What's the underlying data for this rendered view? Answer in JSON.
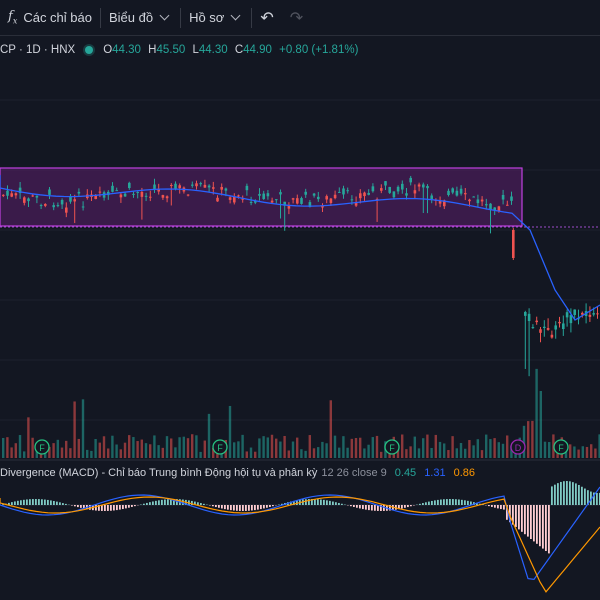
{
  "toolbar": {
    "indicators_label": "Các chỉ báo",
    "chart_label": "Biểu đồ",
    "profile_label": "Hồ sơ",
    "fx_glyph": "f",
    "fx_sub": "x",
    "undo_glyph": "↶",
    "redo_glyph": "↷"
  },
  "legend": {
    "symbol": "CP · 1D · HNX",
    "o_label": "O",
    "o_value": "44.30",
    "h_label": "H",
    "h_value": "45.50",
    "l_label": "L",
    "l_value": "44.30",
    "c_label": "C",
    "c_value": "44.90",
    "change": "+0.80 (+1.81%)"
  },
  "macd_legend": {
    "name": "Divergence (MACD) - Chỉ báo Trung bình Động hội tụ và phân kỳ",
    "params": "12 26 close 9",
    "hist": "0.45",
    "macd": "1.31",
    "signal": "0.86"
  },
  "markers": [
    {
      "letter": "F",
      "kind": "flag"
    },
    {
      "letter": "F",
      "kind": "flag"
    },
    {
      "letter": "F",
      "kind": "flag"
    },
    {
      "letter": "D",
      "kind": "dividend"
    },
    {
      "letter": "F",
      "kind": "flag"
    }
  ],
  "colors": {
    "background": "#131722",
    "up": "#26a69a",
    "down": "#ef5350",
    "zone_fill": "#5b1f6b",
    "zone_border": "#c040e0",
    "ma_line": "#2962ff",
    "macd_line": "#2962ff",
    "signal_line": "#ff9800"
  }
}
